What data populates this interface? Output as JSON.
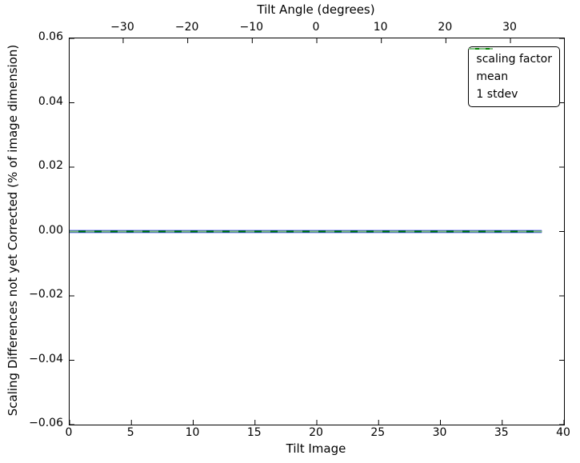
{
  "figure": {
    "background": "#ffffff",
    "spine_color": "#000000",
    "tick_color": "#000000",
    "text_color": "#000000"
  },
  "chart_data": {
    "type": "line",
    "top_axis_label": "Tilt Angle (degrees)",
    "xlabel": "Tilt Image",
    "ylabel": "Scaling Differences not yet Corrected (% of image dimension)",
    "xlim": [
      0,
      40
    ],
    "x_top_lim": [
      -38.3,
      38.3
    ],
    "ylim": [
      -0.06,
      0.06
    ],
    "grid": false,
    "x_bottom_ticks": [
      0,
      5,
      10,
      15,
      20,
      25,
      30,
      35,
      40
    ],
    "x_bottom_tick_labels": [
      "0",
      "5",
      "10",
      "15",
      "20",
      "25",
      "30",
      "35",
      "40"
    ],
    "x_top_ticks": [
      -30,
      -20,
      -10,
      0,
      10,
      20,
      30
    ],
    "x_top_tick_labels": [
      "−30",
      "−20",
      "−10",
      "0",
      "10",
      "20",
      "30"
    ],
    "y_ticks": [
      0.06,
      0.04,
      0.02,
      0.0,
      -0.02,
      -0.04,
      -0.06
    ],
    "y_tick_labels": [
      "0.06",
      "0.04",
      "0.02",
      "0.00",
      "−0.02",
      "−0.04",
      "−0.06"
    ],
    "legend": {
      "position": "upper right",
      "entries": [
        "scaling factor",
        "mean",
        "1 stdev"
      ]
    },
    "series": [
      {
        "name": "scaling factor",
        "color": "#0000ff",
        "linestyle": "solid",
        "linewidth": 3.5,
        "x": [
          0,
          38.2
        ],
        "y": [
          0,
          0
        ]
      },
      {
        "name": "mean",
        "color": "#008000",
        "linestyle": "solid",
        "linewidth": 2.2,
        "x": [
          0,
          38.2
        ],
        "y": [
          0,
          0
        ]
      },
      {
        "name": "1 stdev",
        "color": "#7fbf7f",
        "linestyle": "dashed",
        "linewidth": 2.2,
        "x": [
          0,
          38.2
        ],
        "y": [
          0,
          0
        ]
      }
    ]
  }
}
